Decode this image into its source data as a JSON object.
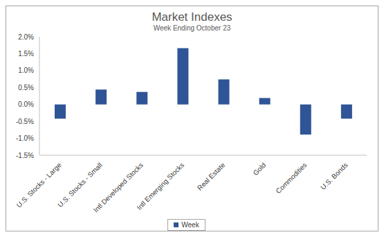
{
  "chart_data": {
    "type": "bar",
    "title": "Market Indexes",
    "subtitle": "Week Ending October 23",
    "categories": [
      "U.S. Stocks - Large",
      "U.S. Stocks - Small",
      "Intl Developed Stocks",
      "Intl Emerging Stocks",
      "Real Estate",
      "Gold",
      "Commodities",
      "U.S. Bonds"
    ],
    "series": [
      {
        "name": "Week",
        "color": "#2F5597",
        "values": [
          -0.42,
          0.44,
          0.37,
          1.66,
          0.74,
          0.19,
          -0.89,
          -0.42
        ]
      }
    ],
    "ylim": [
      -1.5,
      2
    ],
    "yticks": [
      {
        "value": -1.5,
        "label": "-1.5%"
      },
      {
        "value": -1,
        "label": "-1.0%"
      },
      {
        "value": -0.5,
        "label": "-0.5%"
      },
      {
        "value": 0,
        "label": "0.0%"
      },
      {
        "value": 0.5,
        "label": "0.5%"
      },
      {
        "value": 1,
        "label": "1.0%"
      },
      {
        "value": 1.5,
        "label": "1.5%"
      },
      {
        "value": 2,
        "label": "2.0%"
      }
    ],
    "grid": false,
    "legend": "bottom"
  }
}
